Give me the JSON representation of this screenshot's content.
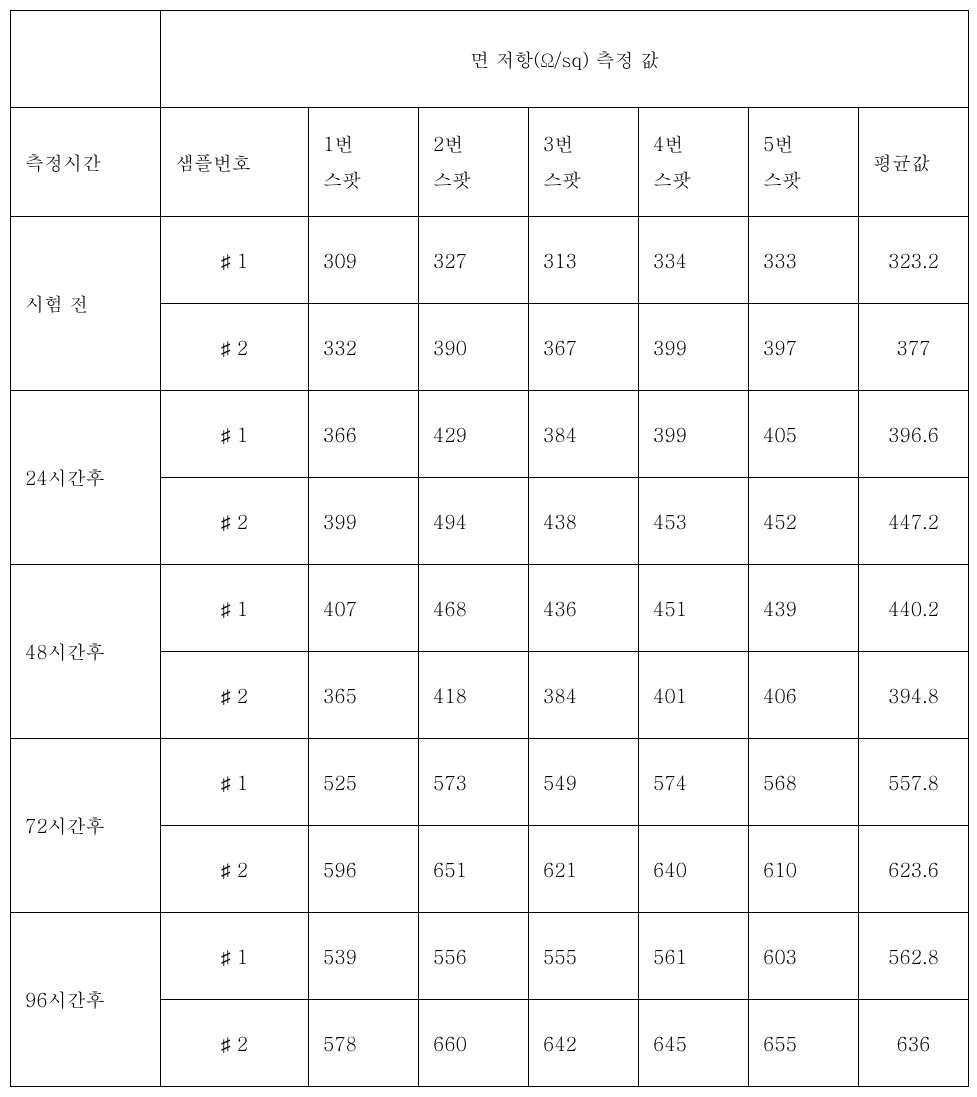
{
  "title": "면 저항(Ω/sq) 측정 값",
  "headers": {
    "time": "측정시간",
    "sample": "샘플번호",
    "spots": [
      "1번\n스팟",
      "2번\n스팟",
      "3번\n스팟",
      "4번\n스팟",
      "5번\n스팟"
    ],
    "avg": "평균값"
  },
  "groups": [
    {
      "time": "시험 전",
      "rows": [
        {
          "sample": "♯ 1",
          "v": [
            309,
            327,
            313,
            334,
            333
          ],
          "avg": "323.2"
        },
        {
          "sample": "♯ 2",
          "v": [
            332,
            390,
            367,
            399,
            397
          ],
          "avg": "377"
        }
      ]
    },
    {
      "time": "24시간후",
      "rows": [
        {
          "sample": "♯ 1",
          "v": [
            366,
            429,
            384,
            399,
            405
          ],
          "avg": "396.6"
        },
        {
          "sample": "♯ 2",
          "v": [
            399,
            494,
            438,
            453,
            452
          ],
          "avg": "447.2"
        }
      ]
    },
    {
      "time": "48시간후",
      "rows": [
        {
          "sample": "♯ 1",
          "v": [
            407,
            468,
            436,
            451,
            439
          ],
          "avg": "440.2"
        },
        {
          "sample": "♯ 2",
          "v": [
            365,
            418,
            384,
            401,
            406
          ],
          "avg": "394.8"
        }
      ]
    },
    {
      "time": "72시간후",
      "rows": [
        {
          "sample": "♯ 1",
          "v": [
            525,
            573,
            549,
            574,
            568
          ],
          "avg": "557.8"
        },
        {
          "sample": "♯ 2",
          "v": [
            596,
            651,
            621,
            640,
            610
          ],
          "avg": "623.6"
        }
      ]
    },
    {
      "time": "96시간후",
      "rows": [
        {
          "sample": "♯ 1",
          "v": [
            539,
            556,
            555,
            561,
            603
          ],
          "avg": "562.8"
        },
        {
          "sample": "♯ 2",
          "v": [
            578,
            660,
            642,
            645,
            655
          ],
          "avg": "636"
        }
      ]
    }
  ]
}
